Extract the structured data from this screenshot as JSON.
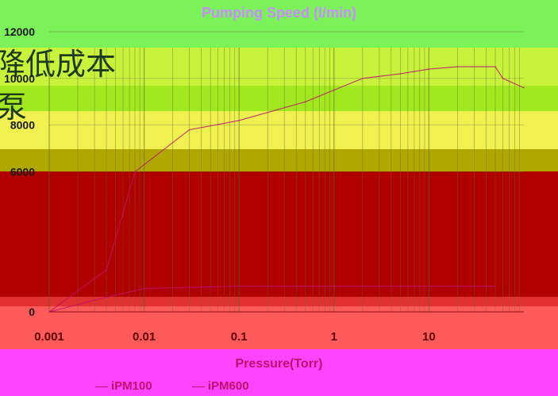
{
  "background_text": [
    "降低成本",
    "泵"
  ],
  "chart_data": {
    "type": "line",
    "title": "Pumping Speed (l/min)",
    "xlabel": "Pressure(Torr)",
    "ylabel": "",
    "x_scale": "log",
    "xlim": [
      0.001,
      100
    ],
    "ylim": [
      0,
      12000
    ],
    "x_ticks": [
      0.001,
      0.01,
      0.1,
      1,
      10
    ],
    "x_tick_labels": [
      "0.001",
      "0.01",
      "0.1",
      "1",
      "10"
    ],
    "y_ticks": [
      0,
      6000,
      8000,
      10000,
      12000
    ],
    "y_tick_labels": [
      "0",
      "6000",
      "8000",
      "10000",
      "12000"
    ],
    "grid": true,
    "legend": "bottom",
    "series": [
      {
        "name": "iPM100",
        "color": "#c01070",
        "x": [
          0.001,
          0.003,
          0.01,
          0.03,
          0.1,
          1,
          10,
          50
        ],
        "y": [
          0,
          500,
          1000,
          1050,
          1100,
          1100,
          1100,
          1100
        ]
      },
      {
        "name": "iPM600",
        "color": "#c01070",
        "x": [
          0.001,
          0.004,
          0.008,
          0.03,
          0.1,
          0.5,
          1,
          2,
          5,
          10,
          20,
          50,
          60,
          100
        ],
        "y": [
          0,
          1800,
          6000,
          7800,
          8200,
          9000,
          9500,
          10000,
          10200,
          10400,
          10500,
          10500,
          10000,
          9600
        ]
      }
    ]
  }
}
